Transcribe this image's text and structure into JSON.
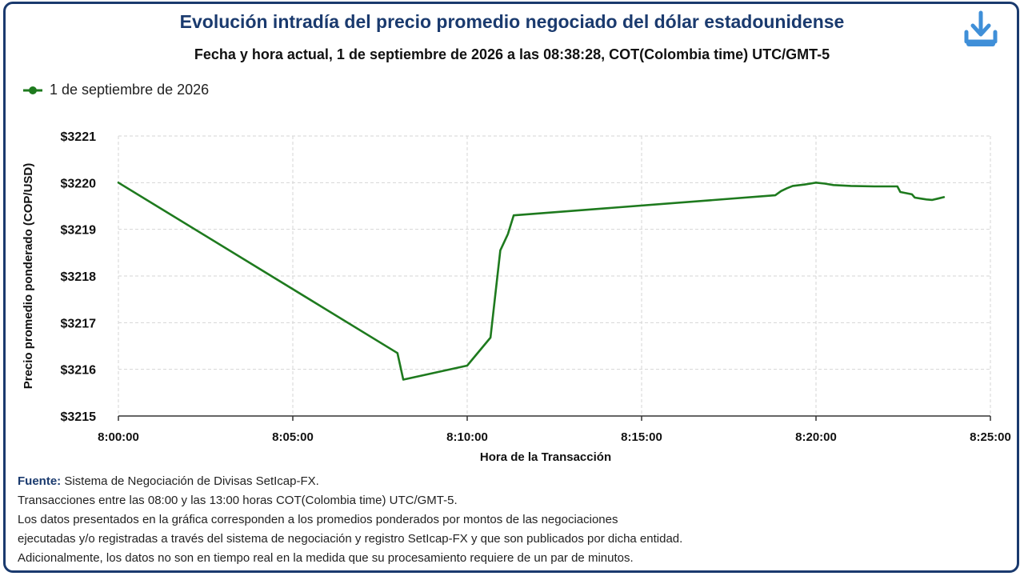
{
  "header": {
    "title": "Evolución intradía del precio promedio negociado del dólar estadounidense",
    "subtitle": "Fecha y hora actual, 1 de septiembre de 2026 a las 08:38:28, COT(Colombia time) UTC/GMT-5",
    "download_icon": "download-icon"
  },
  "chart_data": {
    "type": "line",
    "title": "Evolución intradía del precio promedio negociado del dólar estadounidense",
    "xlabel": "Hora de la Transacción",
    "ylabel": "Precio promedio ponderado (COP/USD)",
    "xlim": [
      "8:00:00",
      "8:25:00"
    ],
    "ylim": [
      3215,
      3221
    ],
    "x_ticks": [
      "8:00:00",
      "8:05:00",
      "8:10:00",
      "8:15:00",
      "8:20:00",
      "8:25:00"
    ],
    "y_ticks": [
      "$3215",
      "$3216",
      "$3217",
      "$3218",
      "$3219",
      "$3220",
      "$3221"
    ],
    "grid": true,
    "legend_position": "top-left",
    "series": [
      {
        "name": "1 de septiembre de 2026",
        "color": "#1e7a1e",
        "x": [
          "8:00:00",
          "8:08:00",
          "8:08:10",
          "8:10:00",
          "8:10:40",
          "8:10:57",
          "8:11:10",
          "8:11:20",
          "8:18:50",
          "8:19:00",
          "8:19:10",
          "8:19:20",
          "8:19:40",
          "8:20:00",
          "8:20:15",
          "8:20:30",
          "8:21:00",
          "8:21:40",
          "8:22:20",
          "8:22:25",
          "8:22:45",
          "8:22:50",
          "8:23:00",
          "8:23:10",
          "8:23:20",
          "8:23:30",
          "8:23:40"
        ],
        "values": [
          3220.0,
          3216.35,
          3215.78,
          3216.08,
          3216.68,
          3218.55,
          3218.9,
          3219.3,
          3219.73,
          3219.82,
          3219.88,
          3219.93,
          3219.96,
          3220.0,
          3219.98,
          3219.95,
          3219.93,
          3219.92,
          3219.92,
          3219.8,
          3219.75,
          3219.68,
          3219.66,
          3219.64,
          3219.63,
          3219.66,
          3219.69
        ]
      }
    ]
  },
  "footer": {
    "source_label": "Fuente:",
    "source_text": " Sistema de Negociación de Divisas SetIcap-FX.",
    "line2": "Transacciones entre las 08:00 y las 13:00 horas COT(Colombia time) UTC/GMT-5.",
    "line3": "Los datos presentados en la gráfica corresponden a los promedios ponderados por montos de las negociaciones",
    "line4": "ejecutadas y/o registradas a través del sistema de negociación y registro SetIcap-FX y que son publicados por dicha entidad.",
    "line5": "Adicionalmente, los datos no son en tiempo real en la medida que su procesamiento requiere de un par de minutos."
  }
}
